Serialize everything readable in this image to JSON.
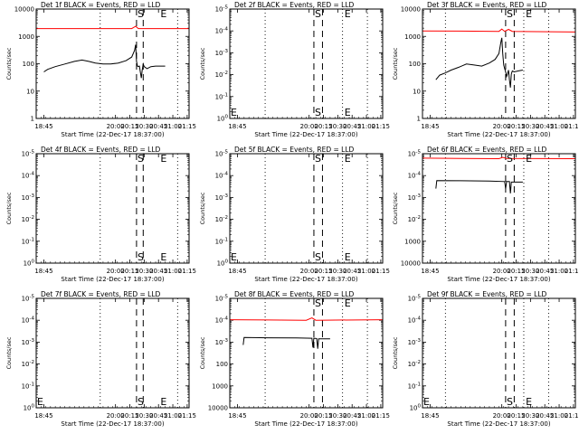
{
  "chart_data": [
    {
      "type": "line",
      "title": "Det 1f BLACK = Events, RED = LLD",
      "xlabel": "Start Time (22-Dec-17 18:37:00)",
      "ylabel": "Counts/sec",
      "yscale": "log",
      "ylim": [
        1,
        15000
      ],
      "y_ticks": [
        "1",
        "10",
        "100",
        "1000",
        "10000"
      ],
      "x_ticks": [
        "18:45",
        "20:00",
        "20:15",
        "20:30",
        "20:45",
        "21:00",
        "21:15"
      ],
      "x_range_min": [
        0,
        160
      ],
      "x_ticks_min": [
        8,
        83,
        98,
        113,
        128,
        143,
        158
      ],
      "dotted_lines_min": [
        67,
        148
      ],
      "dashed_lines_min": [
        105,
        112
      ],
      "markers": [
        {
          "text": "S",
          "x_min": 106,
          "y": 12000
        },
        {
          "text": "E",
          "x_min": 130,
          "y": 12000
        }
      ],
      "series": [
        {
          "color": "#000000",
          "points": [
            [
              8,
              60
            ],
            [
              12,
              75
            ],
            [
              20,
              95
            ],
            [
              30,
              120
            ],
            [
              40,
              150
            ],
            [
              48,
              170
            ],
            [
              55,
              150
            ],
            [
              62,
              130
            ],
            [
              70,
              120
            ],
            [
              78,
              120
            ],
            [
              86,
              130
            ],
            [
              94,
              160
            ],
            [
              100,
              220
            ],
            [
              103,
              400
            ],
            [
              104,
              650
            ],
            [
              105,
              150
            ],
            [
              106,
              100
            ],
            [
              107,
              95
            ],
            [
              108,
              100
            ],
            [
              109,
              60
            ],
            [
              110,
              35
            ],
            [
              111,
              70
            ],
            [
              112,
              120
            ],
            [
              113,
              95
            ],
            [
              116,
              80
            ],
            [
              120,
              95
            ],
            [
              125,
              100
            ],
            [
              130,
              100
            ],
            [
              135,
              100
            ]
          ]
        },
        {
          "color": "#ff0000",
          "points": [
            [
              0,
              2700
            ],
            [
              100,
              2700
            ],
            [
              104,
              3300
            ],
            [
              107,
              2700
            ],
            [
              160,
              2700
            ]
          ]
        }
      ]
    },
    {
      "type": "line",
      "title": "Det 2f BLACK = Events, RED = LLD",
      "xlabel": "Start Time (22-Dec-17 18:37:00)",
      "ylabel": "Counts/sec",
      "yscale": "log",
      "ylim": [
        1,
        10000
      ],
      "y_ticks": [
        "10^0",
        "10^-1",
        "10^-2",
        "10^-3",
        "10^-4",
        "10^-5"
      ],
      "x_ticks": [
        "18:45",
        "20:00",
        "20:15",
        "20:30",
        "20:45",
        "21:00",
        "21:15"
      ],
      "x_range_min": [
        0,
        160
      ],
      "x_ticks_min": [
        8,
        83,
        98,
        113,
        128,
        143,
        158
      ],
      "dotted_lines_min": [
        37,
        118,
        144
      ],
      "dashed_lines_min": [
        88,
        97
      ],
      "markers": [
        {
          "text": "E",
          "x_min": 1,
          "y": 1.7
        },
        {
          "text": "S",
          "x_min": 89,
          "y": 1.7
        },
        {
          "text": "E",
          "x_min": 120,
          "y": 1.7
        },
        {
          "text": "S",
          "x_min": 89,
          "y": 12000
        },
        {
          "text": "E",
          "x_min": 120,
          "y": 12000
        }
      ],
      "series": []
    },
    {
      "type": "line",
      "title": "Det 3f BLACK = Events, RED = LLD",
      "xlabel": "Start Time (22-Dec-17 18:37:00)",
      "ylabel": "Counts/sec",
      "yscale": "log",
      "ylim": [
        1,
        15000
      ],
      "y_ticks": [
        "1",
        "10",
        "100",
        "1000",
        "10000"
      ],
      "x_ticks": [
        "18:45",
        "20:00",
        "20:15",
        "20:30",
        "20:45",
        "21:00",
        "21:15"
      ],
      "x_range_min": [
        0,
        160
      ],
      "x_ticks_min": [
        8,
        83,
        98,
        113,
        128,
        143,
        158
      ],
      "dotted_lines_min": [
        24,
        106,
        132
      ],
      "dashed_lines_min": [
        87,
        96
      ],
      "markers": [
        {
          "text": "S",
          "x_min": 88,
          "y": 12000
        },
        {
          "text": "E",
          "x_min": 108,
          "y": 12000
        }
      ],
      "series": [
        {
          "color": "#000000",
          "points": [
            [
              14,
              30
            ],
            [
              18,
              45
            ],
            [
              24,
              55
            ],
            [
              30,
              70
            ],
            [
              38,
              90
            ],
            [
              46,
              120
            ],
            [
              54,
              110
            ],
            [
              62,
              100
            ],
            [
              70,
              130
            ],
            [
              76,
              180
            ],
            [
              80,
              300
            ],
            [
              82,
              800
            ],
            [
              83,
              1200
            ],
            [
              84,
              300
            ],
            [
              85,
              110
            ],
            [
              86,
              80
            ],
            [
              87,
              60
            ],
            [
              88,
              40
            ],
            [
              89,
              50
            ],
            [
              90,
              70
            ],
            [
              91,
              30
            ],
            [
              92,
              15
            ],
            [
              93,
              50
            ],
            [
              94,
              65
            ],
            [
              96,
              60
            ],
            [
              100,
              65
            ],
            [
              105,
              70
            ]
          ]
        },
        {
          "color": "#ff0000",
          "points": [
            [
              0,
              2200
            ],
            [
              40,
              2150
            ],
            [
              80,
              2100
            ],
            [
              83,
              2600
            ],
            [
              86,
              2100
            ],
            [
              90,
              2500
            ],
            [
              94,
              2100
            ],
            [
              160,
              2000
            ]
          ]
        }
      ]
    },
    {
      "type": "line",
      "title": "Det 4f BLACK = Events, RED = LLD",
      "xlabel": "Start Time (22-Dec-17 18:37:00)",
      "ylabel": "Counts/sec",
      "yscale": "log",
      "ylim": [
        1,
        10000
      ],
      "y_ticks": [
        "10^0",
        "10^-1",
        "10^-2",
        "10^-3",
        "10^-4",
        "10^-5"
      ],
      "x_ticks": [
        "18:45",
        "20:00",
        "20:15",
        "20:30",
        "20:45",
        "21:00",
        "21:15"
      ],
      "x_range_min": [
        0,
        160
      ],
      "x_ticks_min": [
        8,
        83,
        98,
        113,
        128,
        143,
        158
      ],
      "dotted_lines_min": [
        67,
        148
      ],
      "dashed_lines_min": [
        105,
        112
      ],
      "markers": [
        {
          "text": "S",
          "x_min": 106,
          "y": 1.7
        },
        {
          "text": "E",
          "x_min": 130,
          "y": 1.7
        },
        {
          "text": "S",
          "x_min": 106,
          "y": 12000
        },
        {
          "text": "E",
          "x_min": 130,
          "y": 12000
        }
      ],
      "series": []
    },
    {
      "type": "line",
      "title": "Det 5f BLACK = Events, RED = LLD",
      "xlabel": "Start Time (22-Dec-17 18:37:00)",
      "ylabel": "Counts/sec",
      "yscale": "log",
      "ylim": [
        1,
        10000
      ],
      "y_ticks": [
        "10^0",
        "10^-1",
        "10^-2",
        "10^-3",
        "10^-4",
        "10^-5"
      ],
      "x_ticks": [
        "18:45",
        "20:00",
        "20:15",
        "20:30",
        "20:45",
        "21:00",
        "21:15"
      ],
      "x_range_min": [
        0,
        160
      ],
      "x_ticks_min": [
        8,
        83,
        98,
        113,
        128,
        143,
        158
      ],
      "dotted_lines_min": [
        37,
        118,
        144
      ],
      "dashed_lines_min": [
        88,
        97
      ],
      "markers": [
        {
          "text": "E",
          "x_min": 1,
          "y": 1.7
        },
        {
          "text": "S",
          "x_min": 89,
          "y": 1.7
        },
        {
          "text": "E",
          "x_min": 120,
          "y": 1.7
        },
        {
          "text": "S",
          "x_min": 89,
          "y": 12000
        },
        {
          "text": "E",
          "x_min": 120,
          "y": 12000
        }
      ],
      "series": []
    },
    {
      "type": "line",
      "title": "Det 6f BLACK = Events, RED = LLD",
      "xlabel": "Start Time (22-Dec-17 18:37:00)",
      "ylabel": "Counts/sec",
      "yscale": "log",
      "ylim": [
        1,
        12000
      ],
      "y_ticks": [
        "10000",
        "1000",
        "10^-2",
        "10^-3",
        "10^-4",
        "10^-5"
      ],
      "x_ticks": [
        "18:45",
        "20:00",
        "20:15",
        "20:30",
        "20:45",
        "21:00",
        "21:15"
      ],
      "x_range_min": [
        0,
        160
      ],
      "x_ticks_min": [
        8,
        83,
        98,
        113,
        128,
        143,
        158
      ],
      "dotted_lines_min": [
        24,
        106,
        132
      ],
      "dashed_lines_min": [
        87,
        96
      ],
      "markers": [
        {
          "text": "S",
          "x_min": 88,
          "y": 12000
        },
        {
          "text": "E",
          "x_min": 108,
          "y": 12000
        }
      ],
      "series": [
        {
          "color": "#000000",
          "points": [
            [
              14,
              600
            ],
            [
              15,
              1200
            ],
            [
              40,
              1180
            ],
            [
              70,
              1150
            ],
            [
              86,
              1100
            ],
            [
              87,
              600
            ],
            [
              88,
              1100
            ],
            [
              91,
              1100
            ],
            [
              92,
              400
            ],
            [
              93,
              1050
            ],
            [
              105,
              1050
            ]
          ]
        },
        {
          "color": "#ff0000",
          "points": [
            [
              0,
              8200
            ],
            [
              40,
              8000
            ],
            [
              80,
              7800
            ],
            [
              84,
              8800
            ],
            [
              88,
              8000
            ],
            [
              160,
              7800
            ]
          ]
        }
      ]
    },
    {
      "type": "line",
      "title": "Det 7f BLACK = Events, RED = LLD",
      "xlabel": "Start Time (22-Dec-17 18:37:00)",
      "ylabel": "Counts/sec",
      "yscale": "log",
      "ylim": [
        1,
        10000
      ],
      "y_ticks": [
        "10^0",
        "10^-1",
        "10^-2",
        "10^-3",
        "10^-4",
        "10^-5"
      ],
      "x_ticks": [
        "18:45",
        "20:00",
        "20:15",
        "20:30",
        "20:45",
        "21:00",
        "21:15"
      ],
      "x_range_min": [
        0,
        160
      ],
      "x_ticks_min": [
        8,
        83,
        98,
        113,
        128,
        143,
        158
      ],
      "dotted_lines_min": [
        67,
        148
      ],
      "dashed_lines_min": [
        105,
        112
      ],
      "markers": [
        {
          "text": "E",
          "x_min": 1,
          "y": 1.7
        },
        {
          "text": "S",
          "x_min": 106,
          "y": 1.7
        },
        {
          "text": "E",
          "x_min": 130,
          "y": 1.7
        }
      ],
      "series": []
    },
    {
      "type": "line",
      "title": "Det 8f BLACK = Events, RED = LLD",
      "xlabel": "Start Time (22-Dec-17 18:37:00)",
      "ylabel": "Counts/sec",
      "yscale": "log",
      "ylim": [
        1,
        15000
      ],
      "y_ticks": [
        "10000",
        "1000",
        "100",
        "10^-3",
        "10^-4",
        "10^-5"
      ],
      "x_ticks": [
        "18:45",
        "20:00",
        "20:15",
        "20:30",
        "20:45",
        "21:00",
        "21:15"
      ],
      "x_range_min": [
        0,
        160
      ],
      "x_ticks_min": [
        8,
        83,
        98,
        113,
        128,
        143,
        158
      ],
      "dotted_lines_min": [
        37,
        118,
        144
      ],
      "dashed_lines_min": [
        88,
        97
      ],
      "markers": [
        {
          "text": "S",
          "x_min": 89,
          "y": 12000
        },
        {
          "text": "E",
          "x_min": 120,
          "y": 12000
        }
      ],
      "series": [
        {
          "color": "#000000",
          "points": [
            [
              14,
              250
            ],
            [
              15,
              480
            ],
            [
              40,
              470
            ],
            [
              70,
              460
            ],
            [
              86,
              450
            ],
            [
              87,
              200
            ],
            [
              88,
              450
            ],
            [
              91,
              440
            ],
            [
              92,
              180
            ],
            [
              93,
              430
            ],
            [
              105,
              430
            ]
          ]
        },
        {
          "color": "#ff0000",
          "points": [
            [
              0,
              2300
            ],
            [
              40,
              2250
            ],
            [
              80,
              2200
            ],
            [
              86,
              2700
            ],
            [
              90,
              2200
            ],
            [
              160,
              2300
            ]
          ]
        }
      ]
    },
    {
      "type": "line",
      "title": "Det 9f BLACK = Events, RED = LLD",
      "xlabel": "Start Time (22-Dec-17 18:37:00)",
      "ylabel": "Counts/sec",
      "yscale": "log",
      "ylim": [
        1,
        10000
      ],
      "y_ticks": [
        "10^0",
        "10^-1",
        "10^-2",
        "10^-3",
        "10^-4",
        "10^-5"
      ],
      "x_ticks": [
        "18:45",
        "20:00",
        "20:15",
        "20:30",
        "20:45",
        "21:00",
        "21:15"
      ],
      "x_range_min": [
        0,
        160
      ],
      "x_ticks_min": [
        8,
        83,
        98,
        113,
        128,
        143,
        158
      ],
      "dotted_lines_min": [
        24,
        106,
        132
      ],
      "dashed_lines_min": [
        87,
        96
      ],
      "markers": [
        {
          "text": "E",
          "x_min": 1,
          "y": 1.7
        },
        {
          "text": "S",
          "x_min": 88,
          "y": 1.7
        },
        {
          "text": "E",
          "x_min": 108,
          "y": 1.7
        }
      ],
      "series": []
    }
  ]
}
